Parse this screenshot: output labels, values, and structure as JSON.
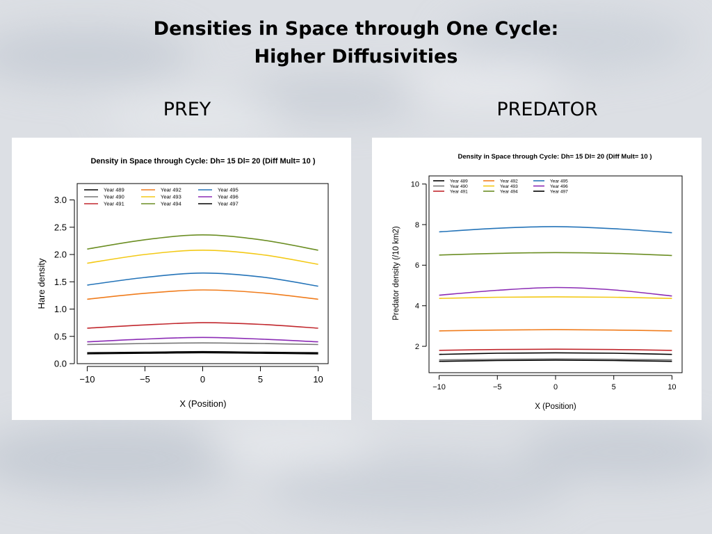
{
  "slide": {
    "title_line1": "Densities in Space through One Cycle:",
    "title_line2": "Higher Diffusivities",
    "prey_label": "PREY",
    "predator_label": "PREDATOR"
  },
  "chart_data": [
    {
      "type": "line",
      "title": "Density in Space through Cycle: Dh= 15  Dl= 20  (Diff Mult= 10 )",
      "xlabel": "X (Position)",
      "ylabel": "Hare density",
      "xlim": [
        -10,
        10
      ],
      "ylim": [
        0,
        3.3
      ],
      "xticks": [
        -10,
        -5,
        0,
        5,
        10
      ],
      "xtick_labels": [
        "−10",
        "−5",
        "0",
        "5",
        "10"
      ],
      "yticks": [
        0.0,
        0.5,
        1.0,
        1.5,
        2.0,
        2.5,
        3.0
      ],
      "ytick_labels": [
        "0.0",
        "0.5",
        "1.0",
        "1.5",
        "2.0",
        "2.5",
        "3.0"
      ],
      "legend_position": "top-left",
      "x": [
        -10,
        -5,
        0,
        5,
        10
      ],
      "series": [
        {
          "name": "Year  489",
          "color": "#000000",
          "values": [
            0.2,
            0.21,
            0.22,
            0.21,
            0.2
          ]
        },
        {
          "name": "Year  490",
          "color": "#777777",
          "values": [
            0.35,
            0.37,
            0.38,
            0.37,
            0.35
          ]
        },
        {
          "name": "Year  491",
          "color": "#c1272d",
          "values": [
            0.65,
            0.71,
            0.75,
            0.72,
            0.65
          ]
        },
        {
          "name": "Year  492",
          "color": "#f07c1c",
          "values": [
            1.18,
            1.29,
            1.35,
            1.3,
            1.18
          ]
        },
        {
          "name": "Year  493",
          "color": "#f3c916",
          "values": [
            1.84,
            2.0,
            2.08,
            2.0,
            1.82
          ]
        },
        {
          "name": "Year  494",
          "color": "#6b8e23",
          "values": [
            2.1,
            2.27,
            2.36,
            2.27,
            2.08
          ]
        },
        {
          "name": "Year  495",
          "color": "#2373b8",
          "values": [
            1.44,
            1.58,
            1.66,
            1.59,
            1.42
          ]
        },
        {
          "name": "Year  496",
          "color": "#8b2bb5",
          "values": [
            0.4,
            0.45,
            0.48,
            0.45,
            0.4
          ]
        },
        {
          "name": "Year  497",
          "color": "#000000",
          "values": [
            0.18,
            0.19,
            0.2,
            0.19,
            0.18
          ]
        }
      ]
    },
    {
      "type": "line",
      "title": "Density in Space through Cycle: Dh= 15  Dl= 20  (Diff Mult= 10 )",
      "xlabel": "X (Position)",
      "ylabel": "Predator density (/10 km2)",
      "xlim": [
        -10,
        10
      ],
      "ylim": [
        0.7,
        10.4
      ],
      "xticks": [
        -10,
        -5,
        0,
        5,
        10
      ],
      "xtick_labels": [
        "−10",
        "−5",
        "0",
        "5",
        "10"
      ],
      "yticks": [
        2,
        4,
        6,
        8,
        10
      ],
      "ytick_labels": [
        "2",
        "4",
        "6",
        "8",
        "10"
      ],
      "legend_position": "top-left",
      "x": [
        -10,
        -5,
        0,
        5,
        10
      ],
      "series": [
        {
          "name": "Year  489",
          "color": "#000000",
          "values": [
            1.6,
            1.66,
            1.68,
            1.66,
            1.6
          ]
        },
        {
          "name": "Year  490",
          "color": "#777777",
          "values": [
            1.33,
            1.36,
            1.38,
            1.36,
            1.33
          ]
        },
        {
          "name": "Year  491",
          "color": "#c1272d",
          "values": [
            1.8,
            1.84,
            1.86,
            1.84,
            1.8
          ]
        },
        {
          "name": "Year  492",
          "color": "#f07c1c",
          "values": [
            2.76,
            2.8,
            2.82,
            2.8,
            2.76
          ]
        },
        {
          "name": "Year  493",
          "color": "#f3c916",
          "values": [
            4.36,
            4.42,
            4.44,
            4.42,
            4.36
          ]
        },
        {
          "name": "Year  494",
          "color": "#6b8e23",
          "values": [
            6.5,
            6.58,
            6.62,
            6.58,
            6.48
          ]
        },
        {
          "name": "Year  495",
          "color": "#2373b8",
          "values": [
            7.64,
            7.82,
            7.9,
            7.8,
            7.6
          ]
        },
        {
          "name": "Year  496",
          "color": "#8b2bb5",
          "values": [
            4.52,
            4.76,
            4.9,
            4.78,
            4.48
          ]
        },
        {
          "name": "Year  497",
          "color": "#000000",
          "values": [
            1.26,
            1.3,
            1.32,
            1.3,
            1.26
          ]
        }
      ]
    }
  ]
}
